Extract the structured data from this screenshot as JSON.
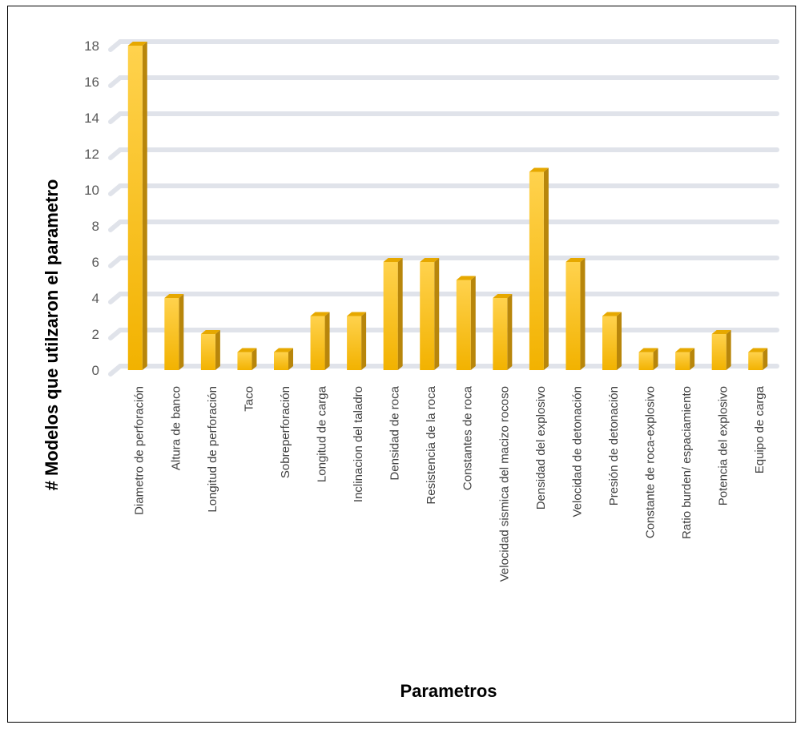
{
  "chart_data": {
    "type": "bar",
    "title": "",
    "xlabel": "Parametros",
    "ylabel": "# Modelos que utilzaron el parametro",
    "ylim": [
      0,
      18
    ],
    "yticks": [
      "0",
      "2",
      "4",
      "6",
      "8",
      "10",
      "12",
      "14",
      "16",
      "18"
    ],
    "grid": true,
    "categories": [
      "Diametro de perforación",
      "Altura de banco",
      "Longitud de perforación",
      "Taco",
      "Sobreperforación",
      "Longitud de carga",
      "Inclinacion del taladro",
      "Densidad de roca",
      "Resistencia de la roca",
      "Constantes de roca",
      "Velocidad sismica del macizo rocoso",
      "Densidad del explosivo",
      "Velocidad de detonación",
      "Presión de detonación",
      "Constante de roca-explosivo",
      "Ratio burden/  espaciamiento",
      "Potencia del explosivo",
      "Equipo de carga"
    ],
    "values": [
      18,
      4,
      2,
      1,
      1,
      3,
      3,
      6,
      6,
      5,
      4,
      11,
      6,
      3,
      1,
      1,
      2,
      1
    ],
    "colors": {
      "bar_front_light": "#FFD966",
      "bar_front": "#FFC000",
      "bar_side": "#B8860B",
      "bar_top": "#E6A800",
      "grid": "#E0E3EA"
    }
  }
}
